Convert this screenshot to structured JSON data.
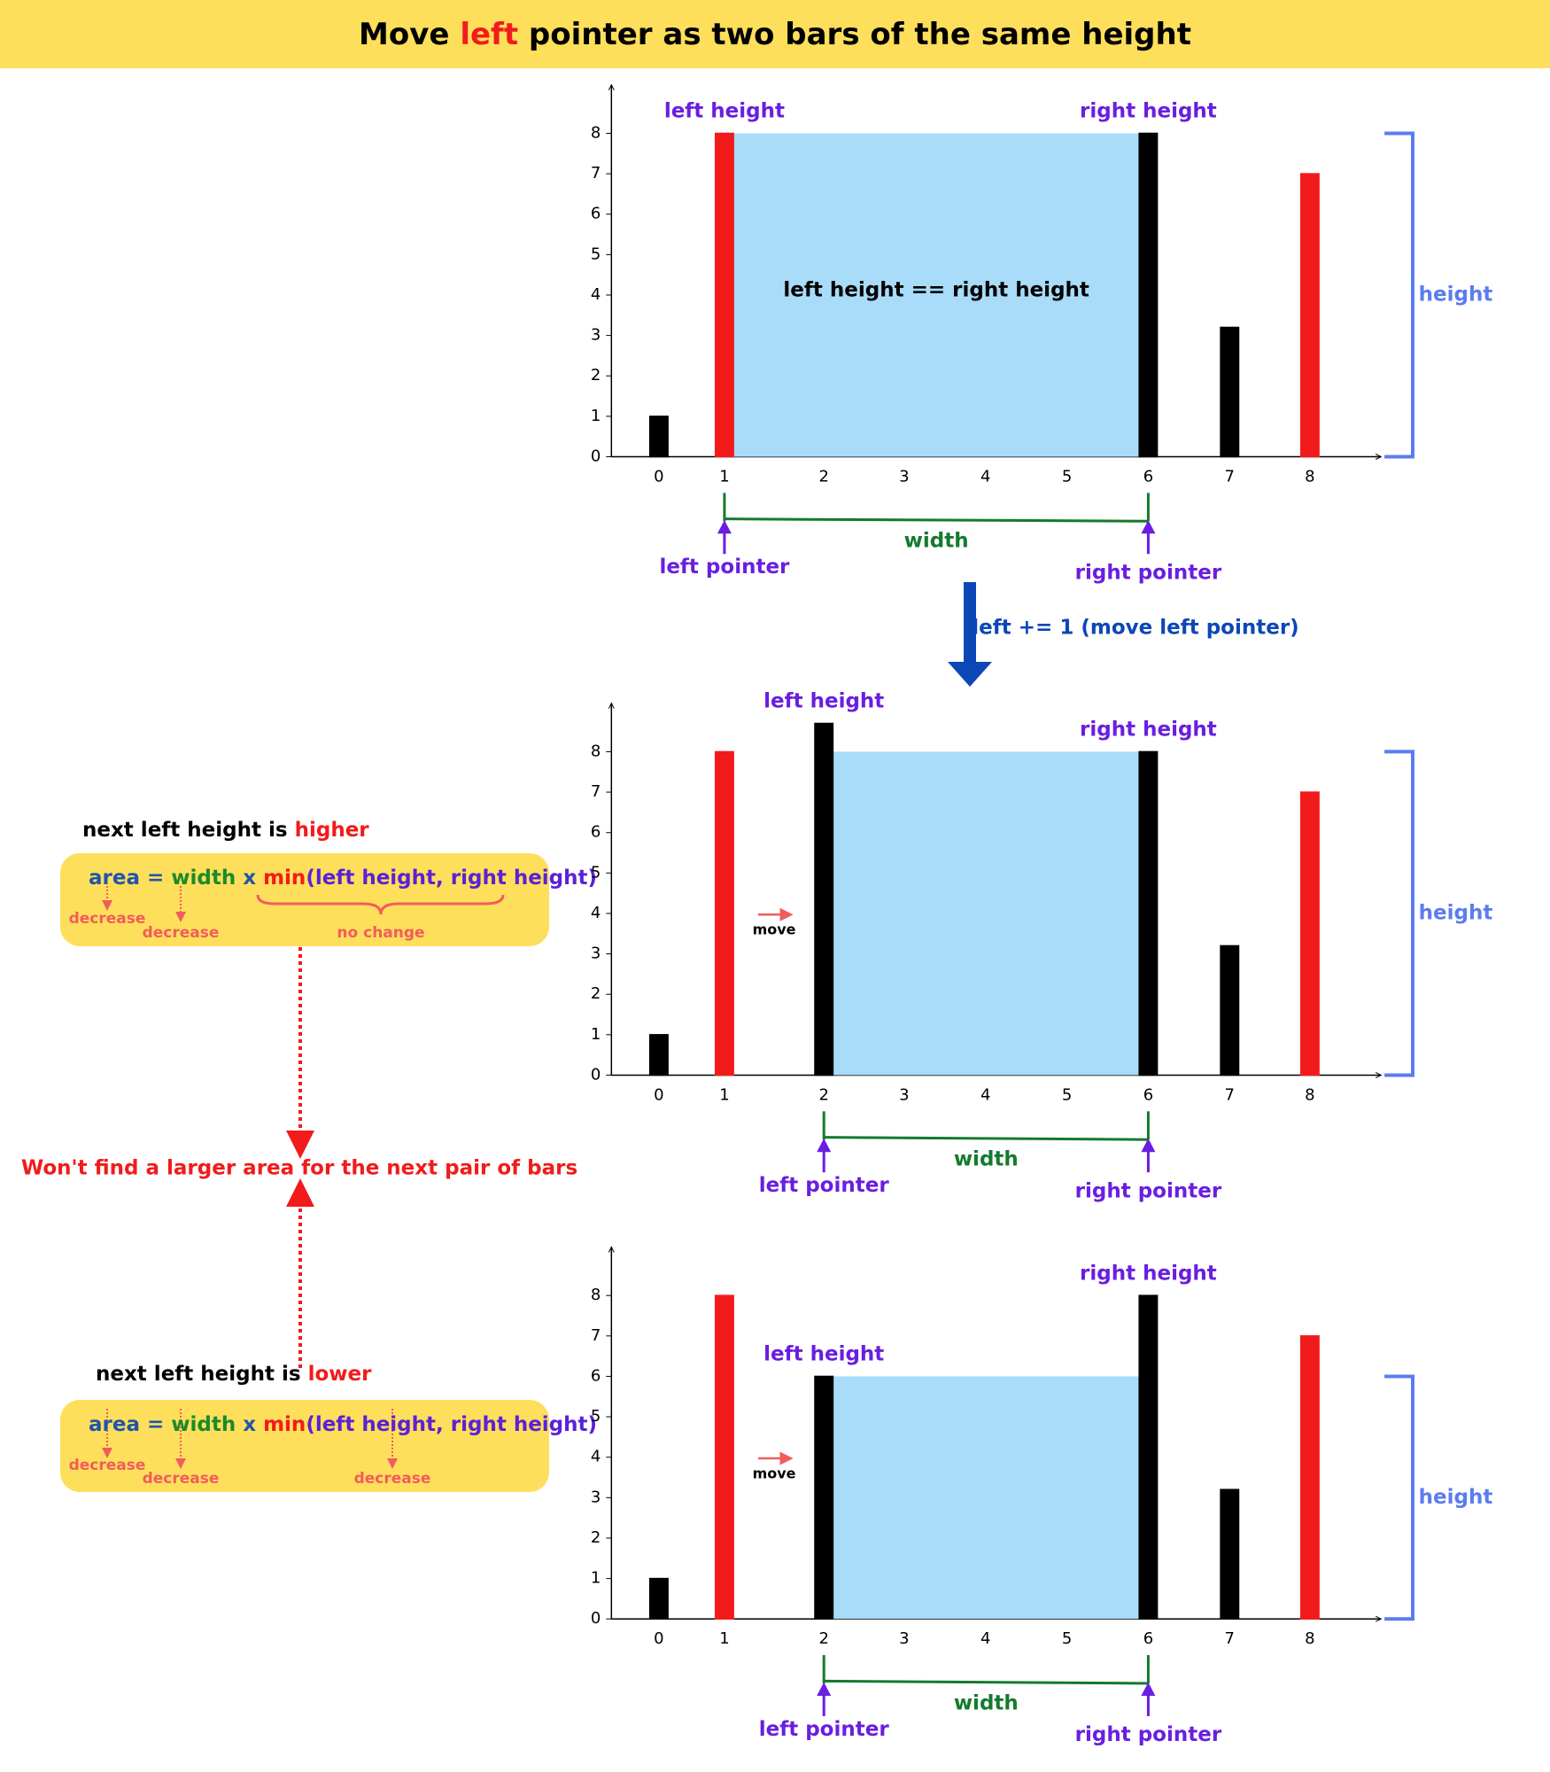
{
  "title": [
    "Move ",
    "left",
    " pointer as two bars of the same height"
  ],
  "transition": "left += 1 (move left pointer)",
  "chart_data": [
    {
      "type": "bar",
      "categories": [
        "0",
        "1",
        "2",
        "3",
        "4",
        "5",
        "6",
        "7",
        "8"
      ],
      "values": [
        1,
        8,
        0,
        0,
        0,
        0,
        8,
        3.2,
        7
      ],
      "colors": [
        "#000000",
        "#f21b1b",
        "#000000",
        "#000000",
        "#000000",
        "#000000",
        "#000000",
        "#000000",
        "#f21b1b"
      ],
      "ylim": [
        0,
        9.2
      ],
      "yticks": [
        0,
        1,
        2,
        3,
        4,
        5,
        6,
        7,
        8
      ],
      "pointers": {
        "left": 1,
        "right": 6
      },
      "labels": {
        "left_height": "left height",
        "right_height": "right height",
        "width": "width",
        "left_pointer": "left pointer",
        "right_pointer": "right pointer",
        "height": "height"
      },
      "note": "left height == right height"
    },
    {
      "type": "bar",
      "categories": [
        "0",
        "1",
        "2",
        "3",
        "4",
        "5",
        "6",
        "7",
        "8"
      ],
      "values": [
        1,
        8,
        8.7,
        0,
        0,
        0,
        8,
        3.2,
        7
      ],
      "colors": [
        "#000000",
        "#f21b1b",
        "#000000",
        "#000000",
        "#000000",
        "#000000",
        "#000000",
        "#000000",
        "#f21b1b"
      ],
      "ylim": [
        0,
        9.2
      ],
      "yticks": [
        0,
        1,
        2,
        3,
        4,
        5,
        6,
        7,
        8
      ],
      "pointers": {
        "left": 2,
        "right": 6
      },
      "labels": {
        "left_height": "left height",
        "right_height": "right height",
        "width": "width",
        "left_pointer": "left pointer",
        "right_pointer": "right pointer",
        "height": "height"
      },
      "move_label": "move"
    },
    {
      "type": "bar",
      "categories": [
        "0",
        "1",
        "2",
        "3",
        "4",
        "5",
        "6",
        "7",
        "8"
      ],
      "values": [
        1,
        8,
        6,
        0,
        0,
        0,
        8,
        3.2,
        7
      ],
      "colors": [
        "#000000",
        "#f21b1b",
        "#000000",
        "#000000",
        "#000000",
        "#000000",
        "#000000",
        "#000000",
        "#f21b1b"
      ],
      "ylim": [
        0,
        9.2
      ],
      "yticks": [
        0,
        1,
        2,
        3,
        4,
        5,
        6,
        7,
        8
      ],
      "pointers": {
        "left": 2,
        "right": 6
      },
      "labels": {
        "left_height": "left height",
        "right_height": "right height",
        "width": "width",
        "left_pointer": "left pointer",
        "right_pointer": "right pointer",
        "height": "height"
      },
      "move_label": "move"
    }
  ],
  "side": {
    "higher": {
      "heading": [
        "next left height is ",
        "higher"
      ],
      "formula": [
        "area",
        "=",
        "width",
        "x",
        "min",
        "(left height, right height)"
      ],
      "notes": [
        "decrease",
        "decrease",
        "no change"
      ]
    },
    "conclusion": "Won't find a larger area for the next pair of bars",
    "lower": {
      "heading": [
        "next left height is ",
        "lower"
      ],
      "formula": [
        "area",
        "=",
        "width",
        "x",
        "min",
        "(left height, right height)"
      ],
      "notes": [
        "decrease",
        "decrease",
        "decrease"
      ]
    }
  }
}
